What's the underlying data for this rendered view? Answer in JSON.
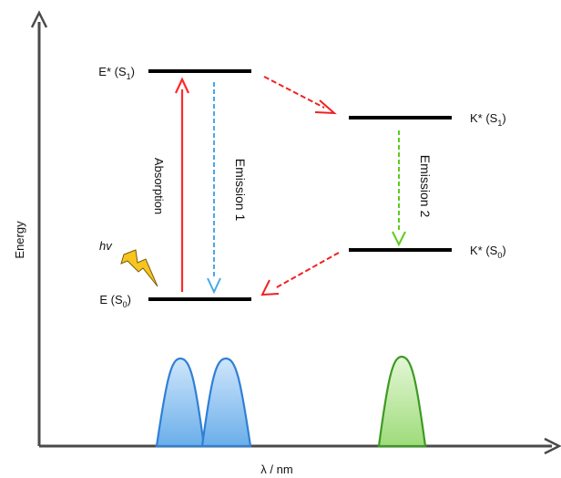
{
  "axes": {
    "y_label": "Energy",
    "x_label": "λ / nm"
  },
  "levels": {
    "e_star": {
      "main": "E* (S",
      "sub": "1",
      "close": ")"
    },
    "e_ground": {
      "main": "E (S",
      "sub": "0",
      "close": ")"
    },
    "k_star_s1": {
      "main": "K* (S",
      "sub": "1",
      "close": ")"
    },
    "k_star_s0": {
      "main": "K* (S",
      "sub": "0",
      "close": ")"
    }
  },
  "transitions": {
    "absorption": "Absorption",
    "emission1": "Emission 1",
    "emission2": "Emission 2"
  },
  "excitation": {
    "label": "hv",
    "icon": "lightning-bolt-icon"
  },
  "colors": {
    "axis": "#4a4a4a",
    "level_line": "#000000",
    "absorption": "#ff2a2a",
    "emission1": "#4aa8e8",
    "emission2": "#5ccc1a",
    "transfer": "#ee2222",
    "bolt_fill": "#f7c51e",
    "bolt_stroke": "#7a5c10",
    "band_blue_fill": "#8fc4f2",
    "band_blue_stroke": "#2f7fd6",
    "band_green_fill": "#bfe9a8",
    "band_green_stroke": "#3c9a22"
  }
}
